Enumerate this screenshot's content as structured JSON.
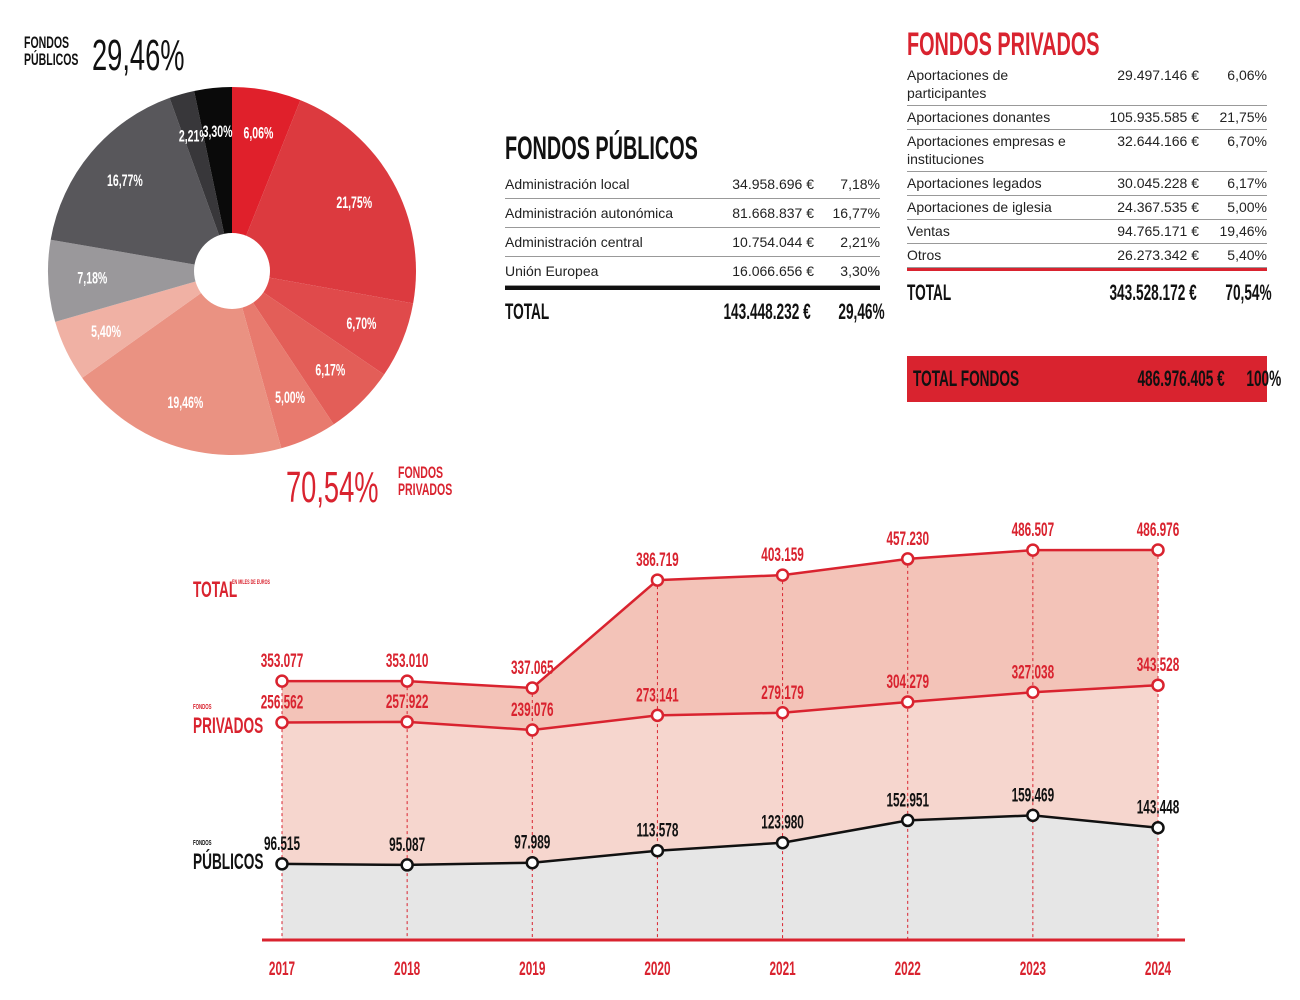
{
  "public_summary": {
    "label_line1": "FONDOS",
    "label_line2": "PÚBLICOS",
    "pct": "29,46%"
  },
  "private_summary": {
    "label_line1": "FONDOS",
    "label_line2": "PRIVADOS",
    "pct": "70,54%"
  },
  "public_table": {
    "title": "FONDOS PÚBLICOS",
    "rows": [
      {
        "label": "Administración local",
        "amount": "34.958.696 €",
        "pct": "7,18%"
      },
      {
        "label": "Administración autonómica",
        "amount": "81.668.837 €",
        "pct": "16,77%"
      },
      {
        "label": "Administración central",
        "amount": "10.754.044 €",
        "pct": "2,21%"
      },
      {
        "label": "Unión Europea",
        "amount": "16.066.656 €",
        "pct": "3,30%"
      }
    ],
    "total": {
      "label": "TOTAL",
      "amount": "143.448.232 €",
      "pct": "29,46%"
    }
  },
  "private_table": {
    "title": "FONDOS PRIVADOS",
    "rows": [
      {
        "label": "Aportaciones de participantes",
        "amount": "29.497.146 €",
        "pct": "6,06%"
      },
      {
        "label": "Aportaciones donantes",
        "amount": "105.935.585 €",
        "pct": "21,75%"
      },
      {
        "label": "Aportaciones empresas e instituciones",
        "amount": "32.644.166 €",
        "pct": "6,70%"
      },
      {
        "label": "Aportaciones legados",
        "amount": "30.045.228 €",
        "pct": "6,17%"
      },
      {
        "label": "Aportaciones de iglesia",
        "amount": "24.367.535 €",
        "pct": "5,00%"
      },
      {
        "label": "Ventas",
        "amount": "94.765.171 €",
        "pct": "19,46%"
      },
      {
        "label": "Otros",
        "amount": "26.273.342 €",
        "pct": "5,40%"
      }
    ],
    "total": {
      "label": "TOTAL",
      "amount": "343.528.172 €",
      "pct": "70,54%"
    },
    "grand_total": {
      "label": "TOTAL FONDOS",
      "amount": "486.976.405 €",
      "pct": "100%"
    }
  },
  "chart_data": [
    {
      "type": "pie",
      "donut": true,
      "slices": [
        {
          "label": "6,06%",
          "value": 6.06,
          "color": "#e0202b"
        },
        {
          "label": "21,75%",
          "value": 21.75,
          "color": "#dc3a3f"
        },
        {
          "label": "6,70%",
          "value": 6.7,
          "color": "#e04a4b"
        },
        {
          "label": "6,17%",
          "value": 6.17,
          "color": "#e35e58"
        },
        {
          "label": "5,00%",
          "value": 5.0,
          "color": "#e87a6e"
        },
        {
          "label": "19,46%",
          "value": 19.46,
          "color": "#ea9282"
        },
        {
          "label": "5,40%",
          "value": 5.4,
          "color": "#f0b1a4"
        },
        {
          "label": "7,18%",
          "value": 7.18,
          "color": "#9a989b"
        },
        {
          "label": "16,77%",
          "value": 16.77,
          "color": "#58575b"
        },
        {
          "label": "2,21%",
          "value": 2.21,
          "color": "#38373a"
        },
        {
          "label": "3,30%",
          "value": 3.3,
          "color": "#0a0a0a"
        }
      ]
    },
    {
      "type": "area",
      "x": [
        "2017",
        "2018",
        "2019",
        "2020",
        "2021",
        "2022",
        "2023",
        "2024"
      ],
      "unit_note": "EN MILES DE EUROS",
      "series": [
        {
          "name": "TOTAL",
          "values": [
            353.077,
            353.01,
            337.065,
            386.719,
            403.159,
            457.23,
            486.507,
            486.976
          ],
          "labels": [
            "353.077",
            "353.010",
            "337.065",
            "386.719",
            "403.159",
            "457.230",
            "486.507",
            "486.976"
          ],
          "color": "#d9232f",
          "fill": "#f3c3b8"
        },
        {
          "name": "PRIVADOS",
          "prefix": "FONDOS",
          "values": [
            256.562,
            257.922,
            239.076,
            273.141,
            279.179,
            304.279,
            327.038,
            343.528
          ],
          "labels": [
            "256.562",
            "257.922",
            "239.076",
            "273.141",
            "279.179",
            "304.279",
            "327.038",
            "343.528"
          ],
          "color": "#d9232f",
          "fill": "#f6d6ce"
        },
        {
          "name": "PÚBLICOS",
          "prefix": "FONDOS",
          "values": [
            96.515,
            95.087,
            97.989,
            113.578,
            123.98,
            152.951,
            159.469,
            143.448
          ],
          "labels": [
            "96.515",
            "95.087",
            "97.989",
            "113.578",
            "123.980",
            "152.951",
            "159.469",
            "143.448"
          ],
          "color": "#111111",
          "fill": "#e6e6e6"
        }
      ]
    }
  ]
}
